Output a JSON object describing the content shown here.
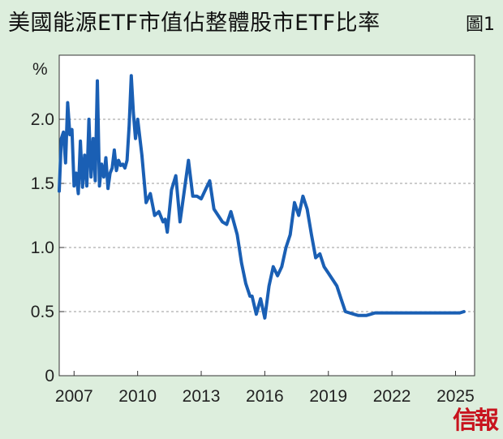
{
  "header": {
    "title": "美國能源ETF市值佔整體股市ETF比率",
    "figure_label": "圖1"
  },
  "logo_text": "信報",
  "chart_data": {
    "type": "line",
    "title": "美國能源ETF市值佔整體股市ETF比率",
    "ylabel": "%",
    "xlabel": "",
    "ylim": [
      0,
      2.5
    ],
    "xlim": [
      2006.3,
      2025.9
    ],
    "yticks": [
      0,
      0.5,
      1.0,
      1.5,
      2.0
    ],
    "ytick_labels": [
      "0",
      "0.5",
      "1.0",
      "1.5",
      "2.0"
    ],
    "xticks": [
      2007,
      2010,
      2013,
      2016,
      2019,
      2022,
      2025
    ],
    "xtick_labels": [
      "2007",
      "2010",
      "2013",
      "2016",
      "2019",
      "2022",
      "2025"
    ],
    "grid": "horizontal dashed",
    "line_color": "#1a5fb4",
    "series": [
      {
        "x": [
          2006.3,
          2006.4,
          2006.5,
          2006.6,
          2006.7,
          2006.8,
          2006.9,
          2007.0,
          2007.1,
          2007.2,
          2007.3,
          2007.4,
          2007.5,
          2007.6,
          2007.7,
          2007.8,
          2007.9,
          2008.0,
          2008.1,
          2008.2,
          2008.3,
          2008.4,
          2008.5,
          2008.6,
          2008.7,
          2008.8,
          2008.9,
          2009.0,
          2009.1,
          2009.2,
          2009.3,
          2009.4,
          2009.5,
          2009.6,
          2009.7,
          2009.8,
          2009.9,
          2010.0,
          2010.2,
          2010.4,
          2010.6,
          2010.8,
          2011.0,
          2011.2,
          2011.3,
          2011.4,
          2011.6,
          2011.8,
          2012.0,
          2012.2,
          2012.4,
          2012.6,
          2012.8,
          2013.0,
          2013.2,
          2013.4,
          2013.6,
          2013.8,
          2014.0,
          2014.2,
          2014.4,
          2014.5,
          2014.7,
          2014.9,
          2015.1,
          2015.3,
          2015.4,
          2015.6,
          2015.8,
          2016.0,
          2016.2,
          2016.4,
          2016.6,
          2016.8,
          2017.0,
          2017.2,
          2017.4,
          2017.6,
          2017.8,
          2018.0,
          2018.2,
          2018.4,
          2018.6,
          2018.8,
          2019.0,
          2019.2,
          2019.4,
          2019.6,
          2019.8,
          2020.0,
          2020.2,
          2020.4,
          2020.6,
          2020.8,
          2021.0,
          2021.2,
          2021.4,
          2021.6,
          2021.8,
          2022.0,
          2022.2,
          2022.4,
          2022.6,
          2022.8,
          2023.0,
          2023.2,
          2023.4,
          2023.6,
          2023.8,
          2024.0,
          2024.2,
          2024.4,
          2024.6,
          2024.8,
          2025.0,
          2025.2,
          2025.4
        ],
        "values": [
          1.44,
          1.85,
          1.9,
          1.66,
          2.13,
          1.88,
          1.92,
          1.48,
          1.58,
          1.42,
          1.83,
          1.47,
          1.72,
          1.48,
          2.0,
          1.55,
          1.85,
          1.52,
          2.3,
          1.48,
          1.65,
          1.55,
          1.7,
          1.46,
          1.58,
          1.62,
          1.76,
          1.6,
          1.68,
          1.64,
          1.65,
          1.62,
          1.68,
          1.95,
          2.34,
          2.05,
          1.85,
          2.0,
          1.72,
          1.35,
          1.42,
          1.25,
          1.28,
          1.2,
          1.22,
          1.12,
          1.45,
          1.56,
          1.2,
          1.44,
          1.68,
          1.4,
          1.4,
          1.38,
          1.45,
          1.52,
          1.3,
          1.25,
          1.2,
          1.18,
          1.28,
          1.22,
          1.1,
          0.88,
          0.72,
          0.62,
          0.62,
          0.48,
          0.6,
          0.45,
          0.7,
          0.85,
          0.78,
          0.85,
          1.0,
          1.1,
          1.35,
          1.25,
          1.4,
          1.3,
          1.1,
          0.92,
          0.95,
          0.85,
          0.8,
          0.75,
          0.7,
          0.6,
          0.5,
          0.49,
          0.48,
          0.47,
          0.47,
          0.47,
          0.48,
          0.49,
          0.49,
          0.49,
          0.49,
          0.49,
          0.49,
          0.49,
          0.49,
          0.49,
          0.49,
          0.49,
          0.49,
          0.49,
          0.49,
          0.49,
          0.49,
          0.49,
          0.49,
          0.49,
          0.49,
          0.49,
          0.5
        ]
      }
    ]
  }
}
